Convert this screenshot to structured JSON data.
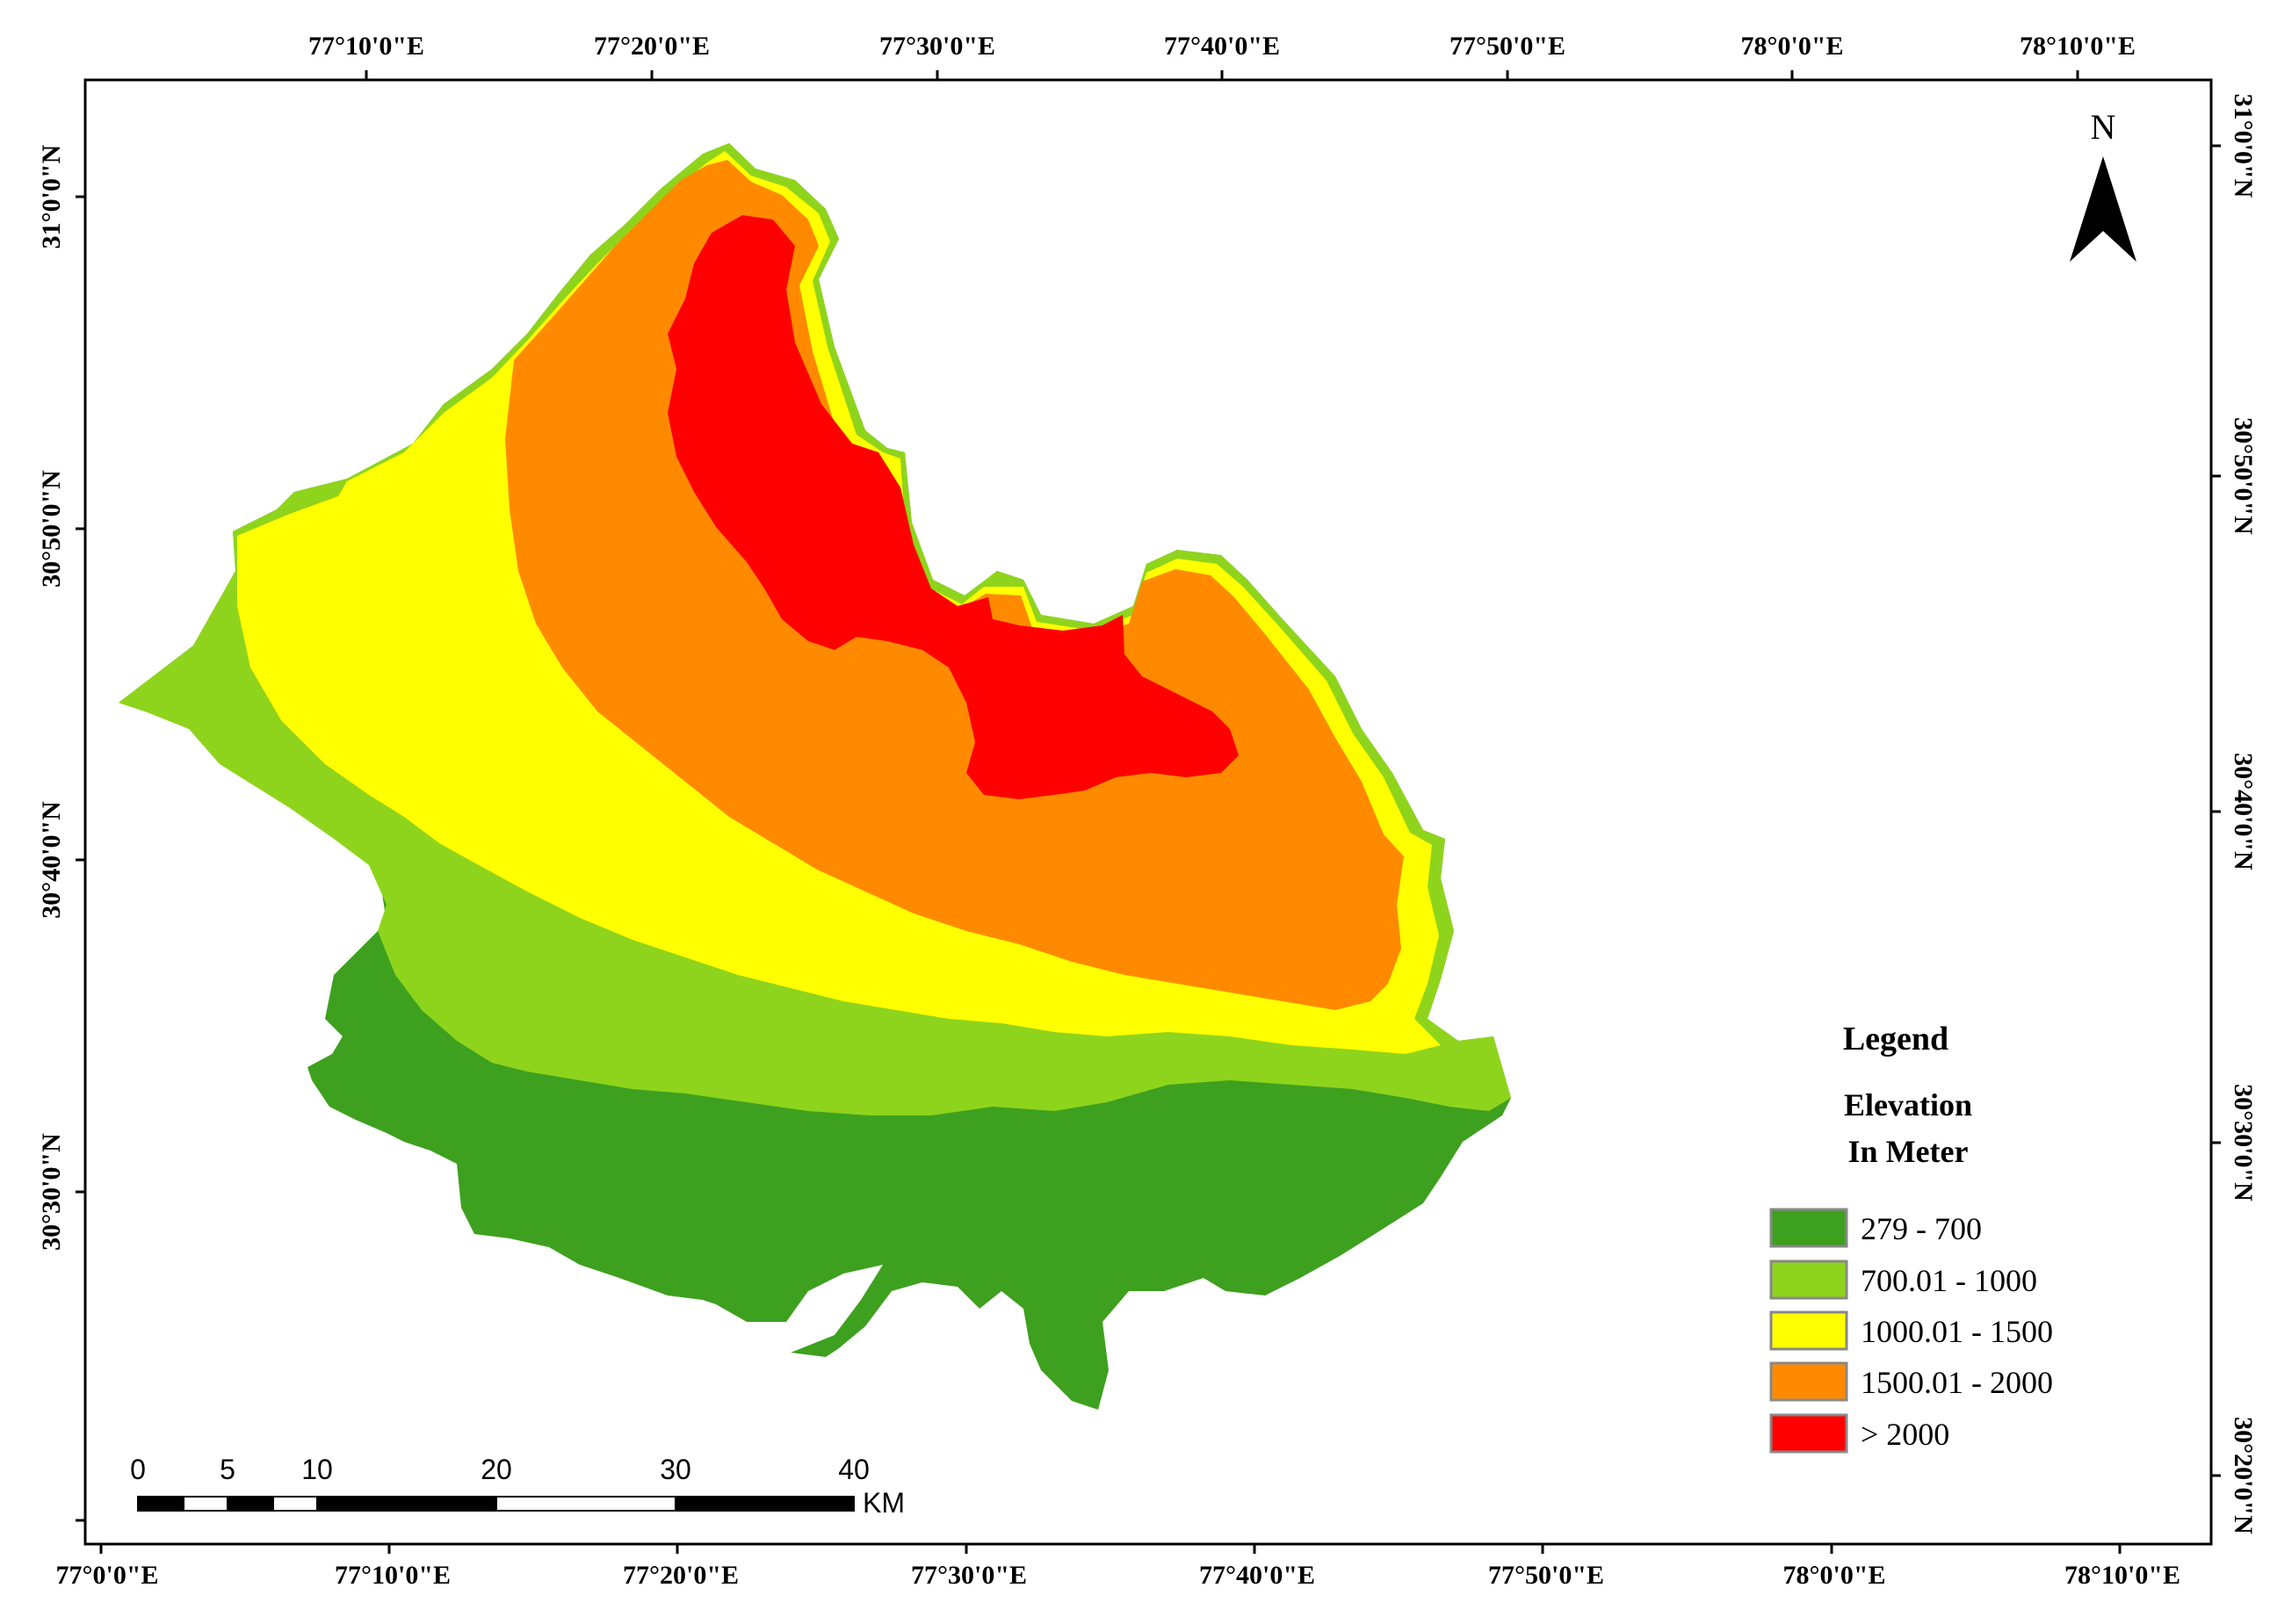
{
  "map": {
    "lon_ticks_top": [
      "77°10'0\"E",
      "77°20'0\"E",
      "77°30'0\"E",
      "77°40'0\"E",
      "77°50'0\"E",
      "78°0'0\"E",
      "78°10'0\"E"
    ],
    "lon_ticks_bottom": [
      "77°0'0\"E",
      "77°10'0\"E",
      "77°20'0\"E",
      "77°30'0\"E",
      "77°40'0\"E",
      "77°50'0\"E",
      "78°0'0\"E",
      "78°10'0\"E"
    ],
    "lat_ticks_left": [
      "31°0'0\"N",
      "30°50'0\"N",
      "30°40'0\"N",
      "30°30'0\"N"
    ],
    "lat_ticks_right": [
      "31°0'0\"N",
      "30°50'0\"N",
      "30°40'0\"N",
      "30°30'0\"N",
      "30°20'0\"N"
    ]
  },
  "north_arrow": {
    "label": "N",
    "icon": "north-arrow-icon"
  },
  "legend": {
    "title": "Legend",
    "subtitle_line1": "Elevation",
    "subtitle_line2": "In Meter",
    "classes": [
      {
        "label": "279 - 700",
        "color": "#3ea01f"
      },
      {
        "label": "700.01 - 1000",
        "color": "#8fd41c"
      },
      {
        "label": "1000.01 - 1500",
        "color": "#ffff00"
      },
      {
        "label": "1500.01 - 2000",
        "color": "#ff8a00"
      },
      {
        "label": "> 2000",
        "color": "#ff0000"
      }
    ]
  },
  "scale_bar": {
    "labels": [
      "0",
      "5",
      "10",
      "20",
      "30",
      "40"
    ],
    "unit": "KM"
  }
}
